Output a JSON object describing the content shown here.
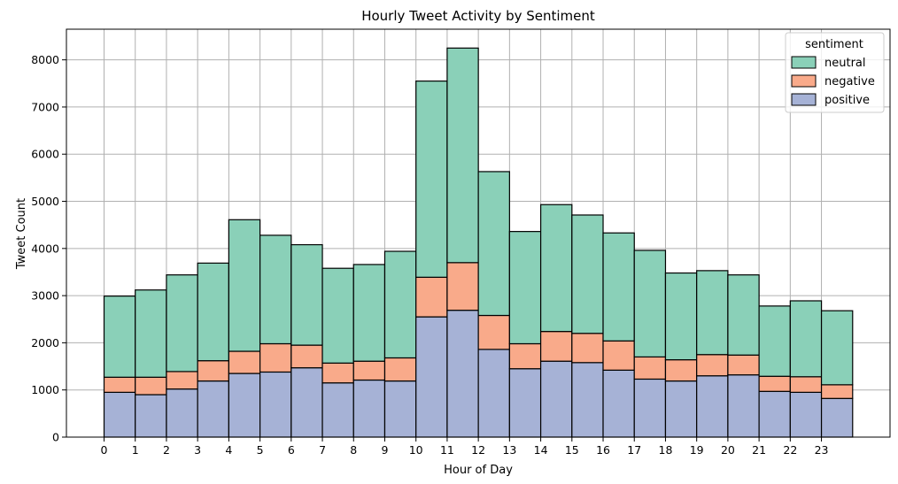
{
  "chart_data": {
    "type": "bar",
    "stacked": true,
    "title": "Hourly Tweet Activity by Sentiment",
    "xlabel": "Hour of Day",
    "ylabel": "Tweet Count",
    "ylim": [
      0,
      8650
    ],
    "yticks": [
      0,
      1000,
      2000,
      3000,
      4000,
      5000,
      6000,
      7000,
      8000
    ],
    "categories": [
      "0",
      "1",
      "2",
      "3",
      "4",
      "5",
      "6",
      "7",
      "8",
      "9",
      "10",
      "11",
      "12",
      "13",
      "14",
      "15",
      "16",
      "17",
      "18",
      "19",
      "20",
      "21",
      "22",
      "23"
    ],
    "grid": true,
    "legend": {
      "title": "sentiment",
      "position": "top-right"
    },
    "series": [
      {
        "name": "positive",
        "color": "#a6b2d6",
        "values": [
          950,
          900,
          1020,
          1190,
          1350,
          1380,
          1470,
          1150,
          1210,
          1190,
          2550,
          2690,
          1860,
          1450,
          1610,
          1580,
          1420,
          1230,
          1190,
          1300,
          1320,
          970,
          950,
          820
        ]
      },
      {
        "name": "negative",
        "color": "#f9aa8a",
        "values": [
          320,
          370,
          370,
          430,
          470,
          600,
          480,
          420,
          400,
          490,
          840,
          1010,
          720,
          530,
          630,
          620,
          620,
          470,
          450,
          450,
          420,
          320,
          330,
          290
        ]
      },
      {
        "name": "neutral",
        "color": "#8ad0b8",
        "values": [
          1720,
          1850,
          2050,
          2070,
          2790,
          2300,
          2130,
          2010,
          2050,
          2260,
          4160,
          4550,
          3050,
          2380,
          2690,
          2510,
          2290,
          2260,
          1840,
          1780,
          1700,
          1490,
          1610,
          1570
        ]
      }
    ],
    "legend_order": [
      "neutral",
      "negative",
      "positive"
    ]
  }
}
